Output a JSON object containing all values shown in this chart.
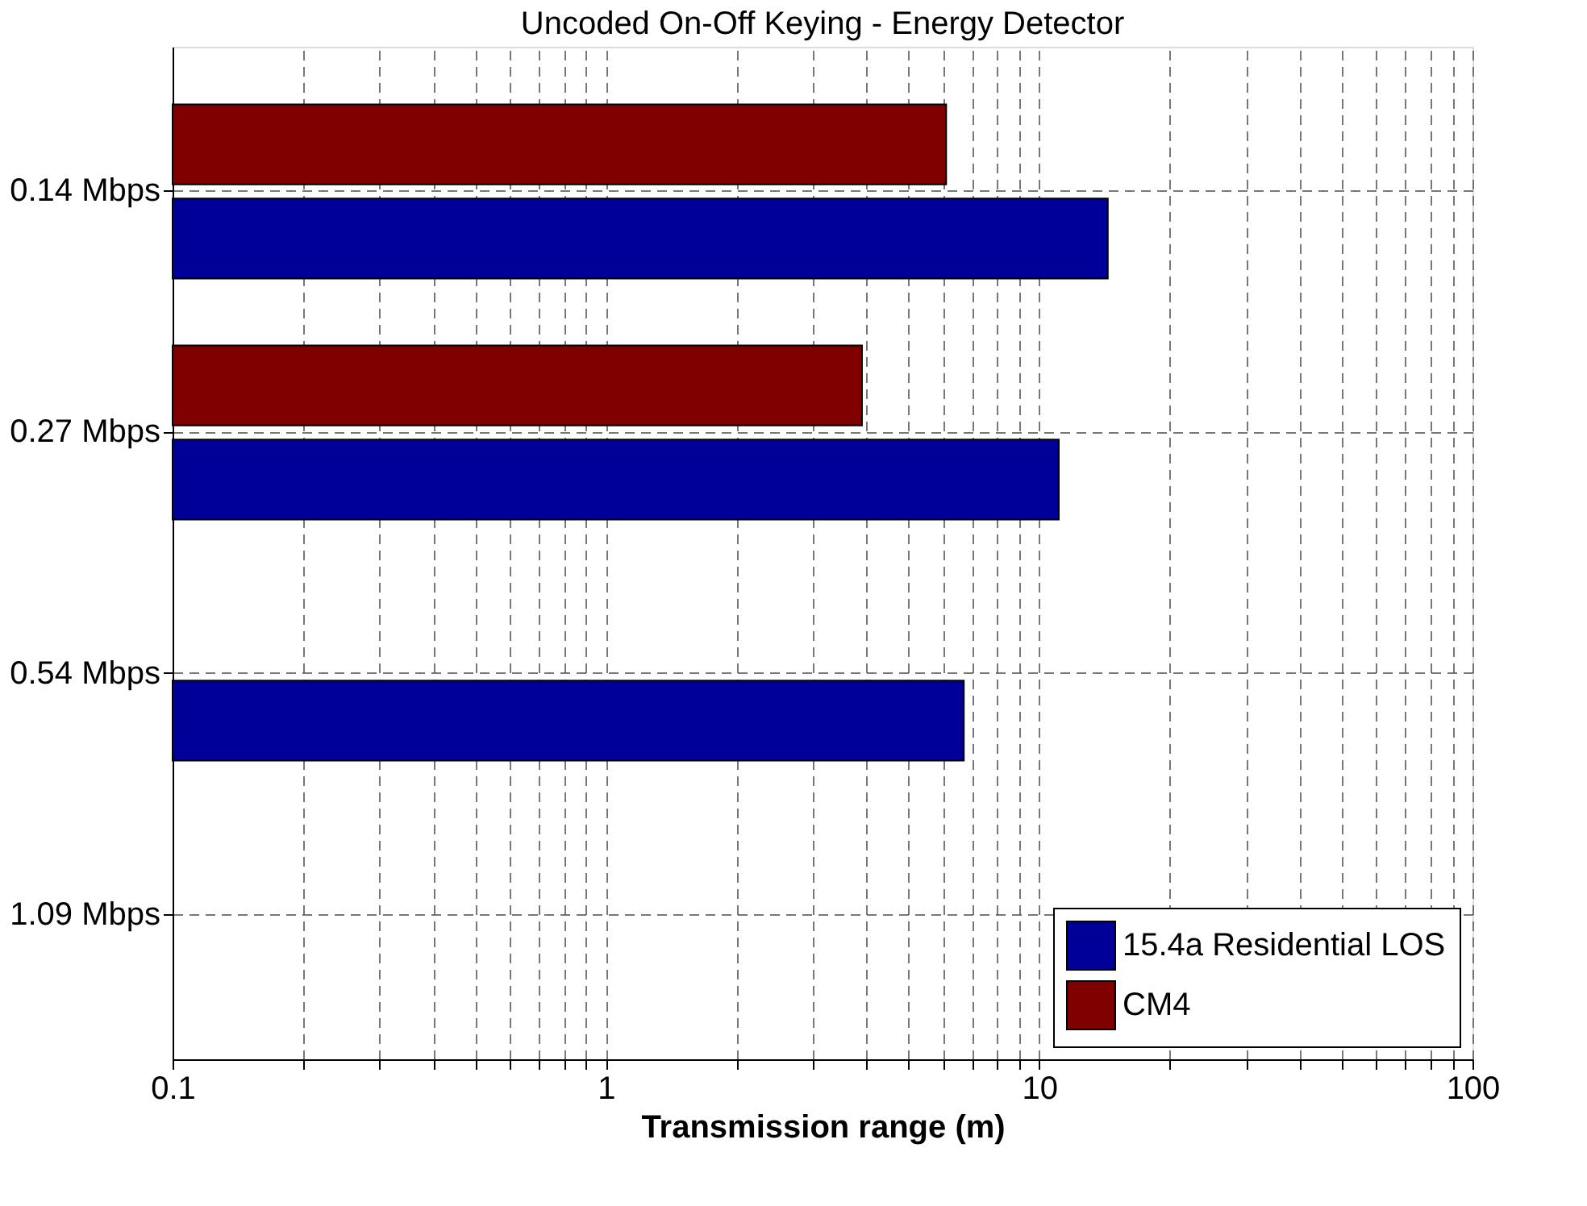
{
  "chart_data": {
    "type": "bar",
    "orientation": "horizontal",
    "title": "Uncoded On-Off Keying - Energy Detector",
    "xlabel": "Transmission range (m)",
    "categories": [
      "0.14 Mbps",
      "0.27 Mbps",
      "0.54 Mbps",
      "1.09 Mbps"
    ],
    "series": [
      {
        "name": "15.4a Residential LOS",
        "color": "#000099",
        "values": [
          14.4,
          11.1,
          6.7,
          null
        ]
      },
      {
        "name": "CM4",
        "color": "#800000",
        "values": [
          6.1,
          3.9,
          null,
          null
        ]
      }
    ],
    "log": "x",
    "xlim": [
      0.1,
      100
    ],
    "xticks": [
      0.1,
      {
        "value": 0.2,
        "label": null
      },
      {
        "value": 0.3,
        "label": null
      },
      {
        "value": 0.4,
        "label": null
      },
      {
        "value": 0.5,
        "label": null
      },
      {
        "value": 0.6,
        "label": null
      },
      {
        "value": 0.7,
        "label": null
      },
      {
        "value": 0.8,
        "label": null
      },
      {
        "value": 0.9,
        "label": null
      },
      1,
      {
        "value": 2,
        "label": null
      },
      {
        "value": 3,
        "label": null
      },
      {
        "value": 4,
        "label": null
      },
      {
        "value": 5,
        "label": null
      },
      {
        "value": 6,
        "label": null
      },
      {
        "value": 7,
        "label": null
      },
      {
        "value": 8,
        "label": null
      },
      {
        "value": 9,
        "label": null
      },
      10,
      {
        "value": 20,
        "label": null
      },
      {
        "value": 30,
        "label": null
      },
      {
        "value": 40,
        "label": null
      },
      {
        "value": 50,
        "label": null
      },
      {
        "value": 60,
        "label": null
      },
      {
        "value": 70,
        "label": null
      },
      {
        "value": 80,
        "label": null
      },
      {
        "value": 90,
        "label": null
      },
      100
    ],
    "grid": true,
    "legend": "bottom right"
  }
}
